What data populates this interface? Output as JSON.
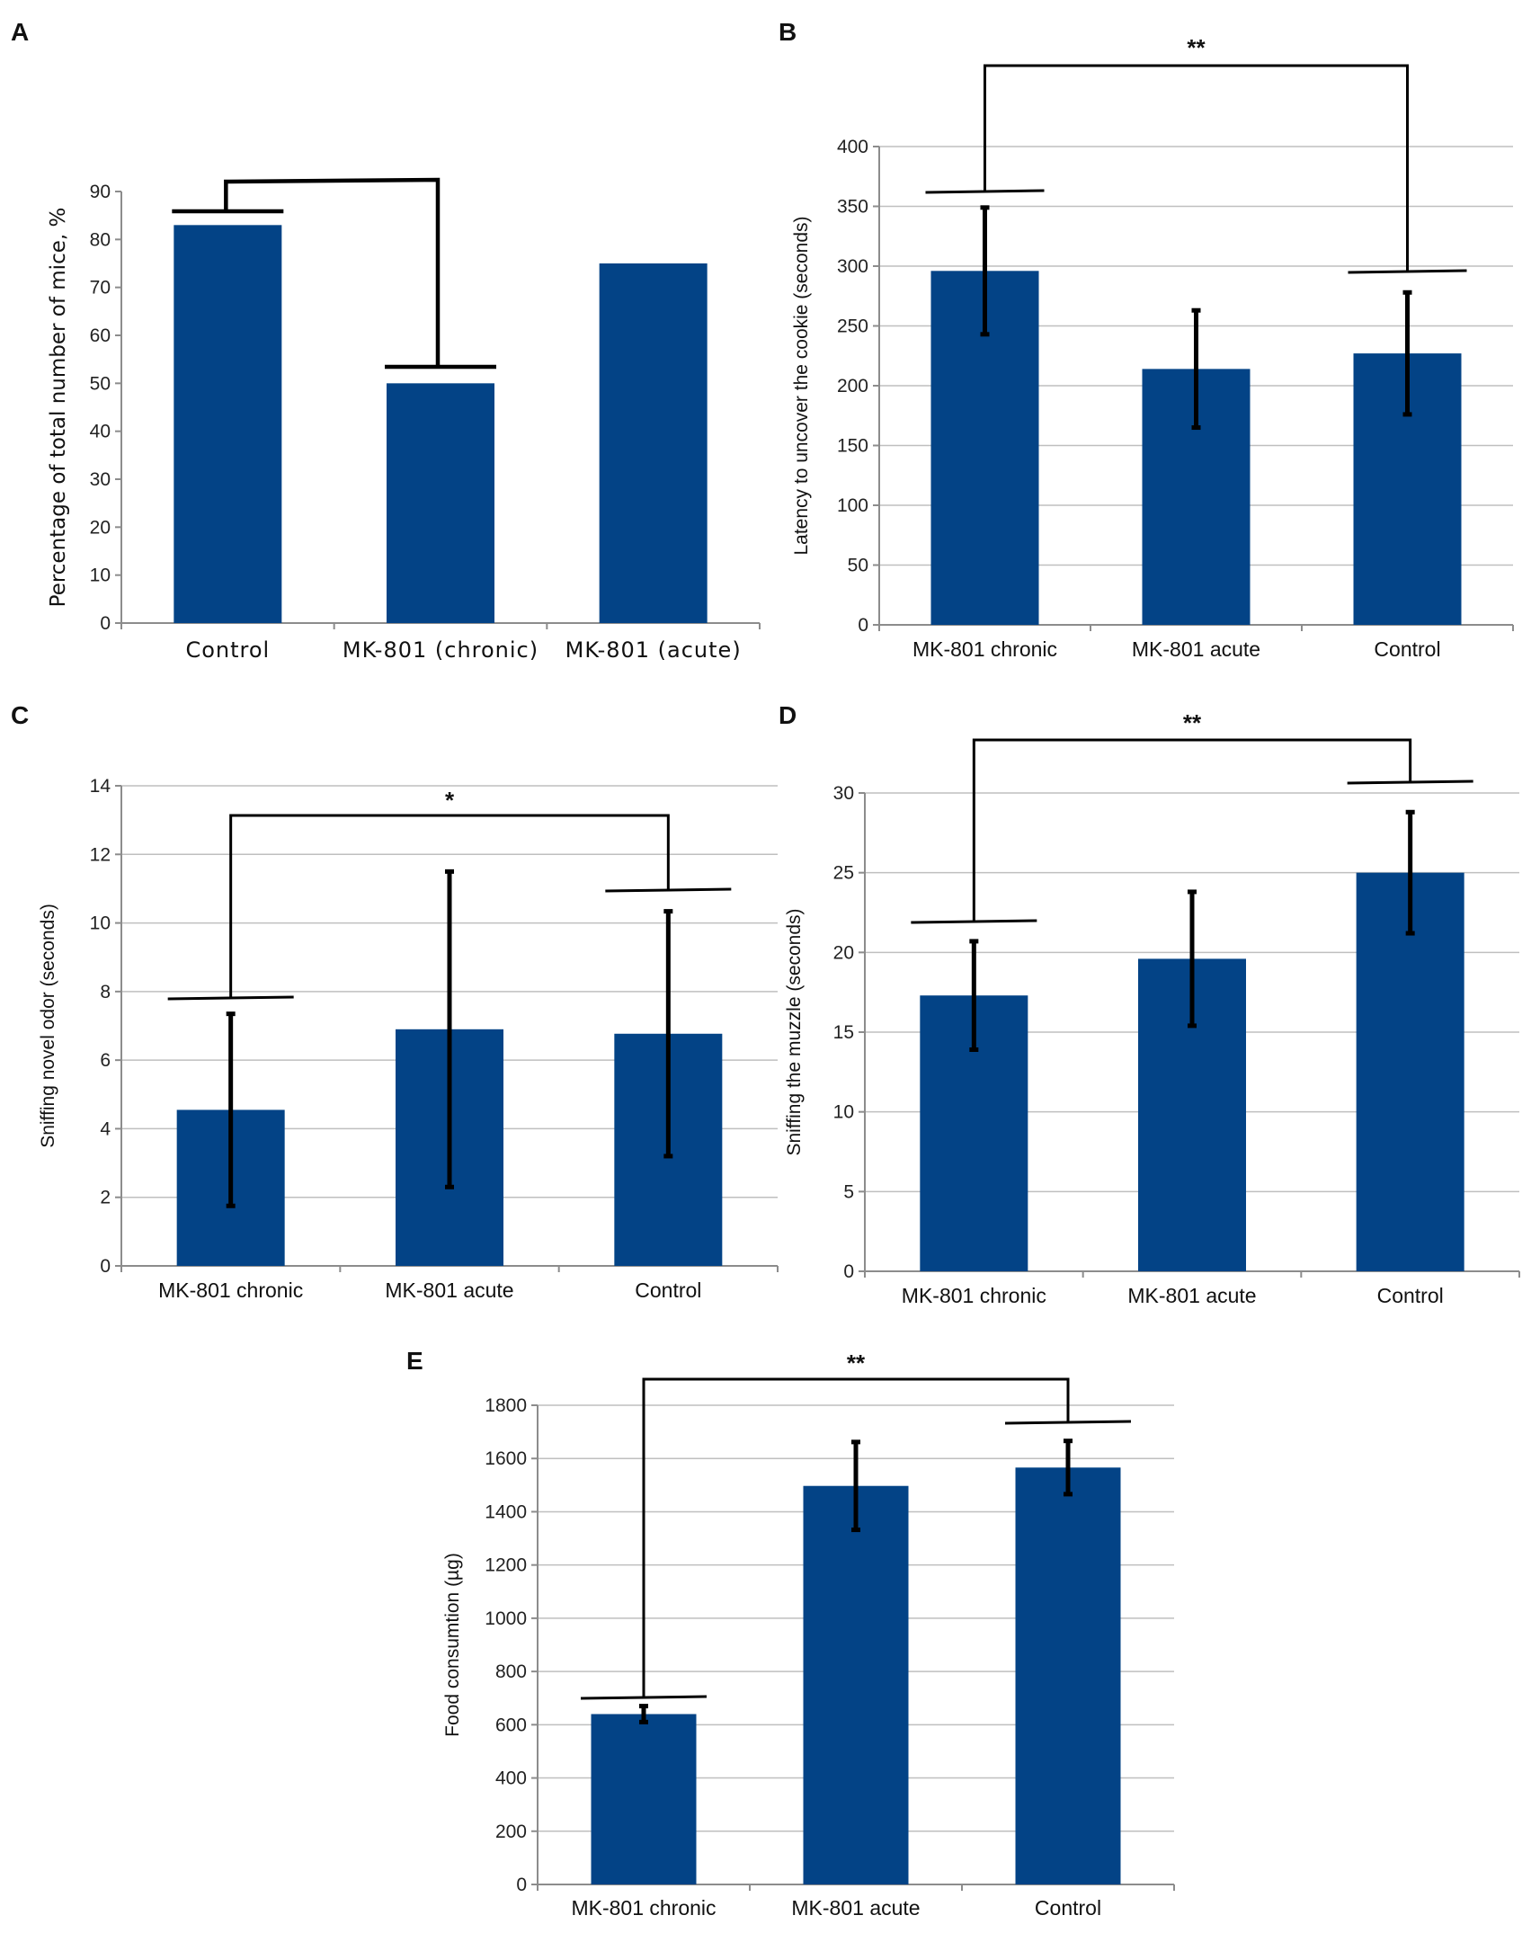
{
  "figure": {
    "colors": {
      "bar": "#034386",
      "grid": "#bfbfbf",
      "axis": "#8c8c8c",
      "ink": "#000000"
    }
  },
  "chart_data": [
    {
      "id": "A",
      "type": "bar",
      "panel_label": "A",
      "categories": [
        "Control",
        "MK-801 (chronic)",
        "MK-801 (acute)"
      ],
      "values": [
        83,
        50,
        75
      ],
      "errors": null,
      "ylabel": "Percentage of total number of mice, %",
      "xlabel": "",
      "ylim": [
        0,
        90
      ],
      "yticks": [
        0,
        10,
        20,
        30,
        40,
        50,
        60,
        70,
        80,
        90
      ],
      "ytick_labels": [
        "0",
        "10",
        "20",
        "30",
        "40",
        "50",
        "60",
        "70",
        "80",
        "90"
      ],
      "grid": false,
      "significance": {
        "from": 0,
        "to": 1,
        "label": ""
      }
    },
    {
      "id": "B",
      "type": "bar",
      "panel_label": "B",
      "categories": [
        "MK-801 chronic",
        "MK-801 acute",
        "Control"
      ],
      "values": [
        296,
        214,
        227
      ],
      "errors": [
        53,
        49,
        51
      ],
      "ylabel": "Latency to uncover the cookie (seconds)",
      "xlabel": "",
      "ylim": [
        0,
        400
      ],
      "yticks": [
        0,
        50,
        100,
        150,
        200,
        250,
        300,
        350,
        400
      ],
      "ytick_labels": [
        "0",
        "50",
        "100",
        "150",
        "200",
        "250",
        "300",
        "350",
        "400"
      ],
      "grid": true,
      "significance": {
        "from": 0,
        "to": 2,
        "label": "**"
      }
    },
    {
      "id": "C",
      "type": "bar",
      "panel_label": "C",
      "categories": [
        "MK-801 chronic",
        "MK-801 acute",
        "Control"
      ],
      "values": [
        4.55,
        6.9,
        6.77
      ],
      "errors": [
        2.8,
        4.6,
        3.57
      ],
      "ylabel": "Sniffing novel odor (seconds)",
      "xlabel": "",
      "ylim": [
        0,
        14
      ],
      "yticks": [
        0,
        2,
        4,
        6,
        8,
        10,
        12,
        14
      ],
      "ytick_labels": [
        "0",
        "2",
        "4",
        "6",
        "8",
        "10",
        "12",
        "14"
      ],
      "grid": true,
      "significance": {
        "from": 0,
        "to": 2,
        "label": "*"
      }
    },
    {
      "id": "D",
      "type": "bar",
      "panel_label": "D",
      "categories": [
        "MK-801 chronic",
        "MK-801 acute",
        "Control"
      ],
      "values": [
        17.3,
        19.6,
        25
      ],
      "errors": [
        3.4,
        4.2,
        3.8
      ],
      "ylabel": "Sniffing the muzzle (seconds)",
      "xlabel": "",
      "ylim": [
        0,
        30
      ],
      "yticks": [
        0,
        5,
        10,
        15,
        20,
        25,
        30
      ],
      "ytick_labels": [
        "0",
        "5",
        "10",
        "15",
        "20",
        "25",
        "30"
      ],
      "grid": true,
      "significance": {
        "from": 0,
        "to": 2,
        "label": "**"
      }
    },
    {
      "id": "E",
      "type": "bar",
      "panel_label": "E",
      "categories": [
        "MK-801 chronic",
        "MK-801 acute",
        "Control"
      ],
      "values": [
        640,
        1497,
        1566
      ],
      "errors": [
        30,
        165,
        100
      ],
      "ylabel": "Food consumtion (µg)",
      "xlabel": "",
      "ylim": [
        0,
        1800
      ],
      "yticks": [
        0,
        200,
        400,
        600,
        800,
        1000,
        1200,
        1400,
        1600,
        1800
      ],
      "ytick_labels": [
        "0",
        "200",
        "400",
        "600",
        "800",
        "1000",
        "1200",
        "1400",
        "1600",
        "1800"
      ],
      "grid": true,
      "significance": {
        "from": 0,
        "to": 2,
        "label": "**"
      }
    }
  ]
}
